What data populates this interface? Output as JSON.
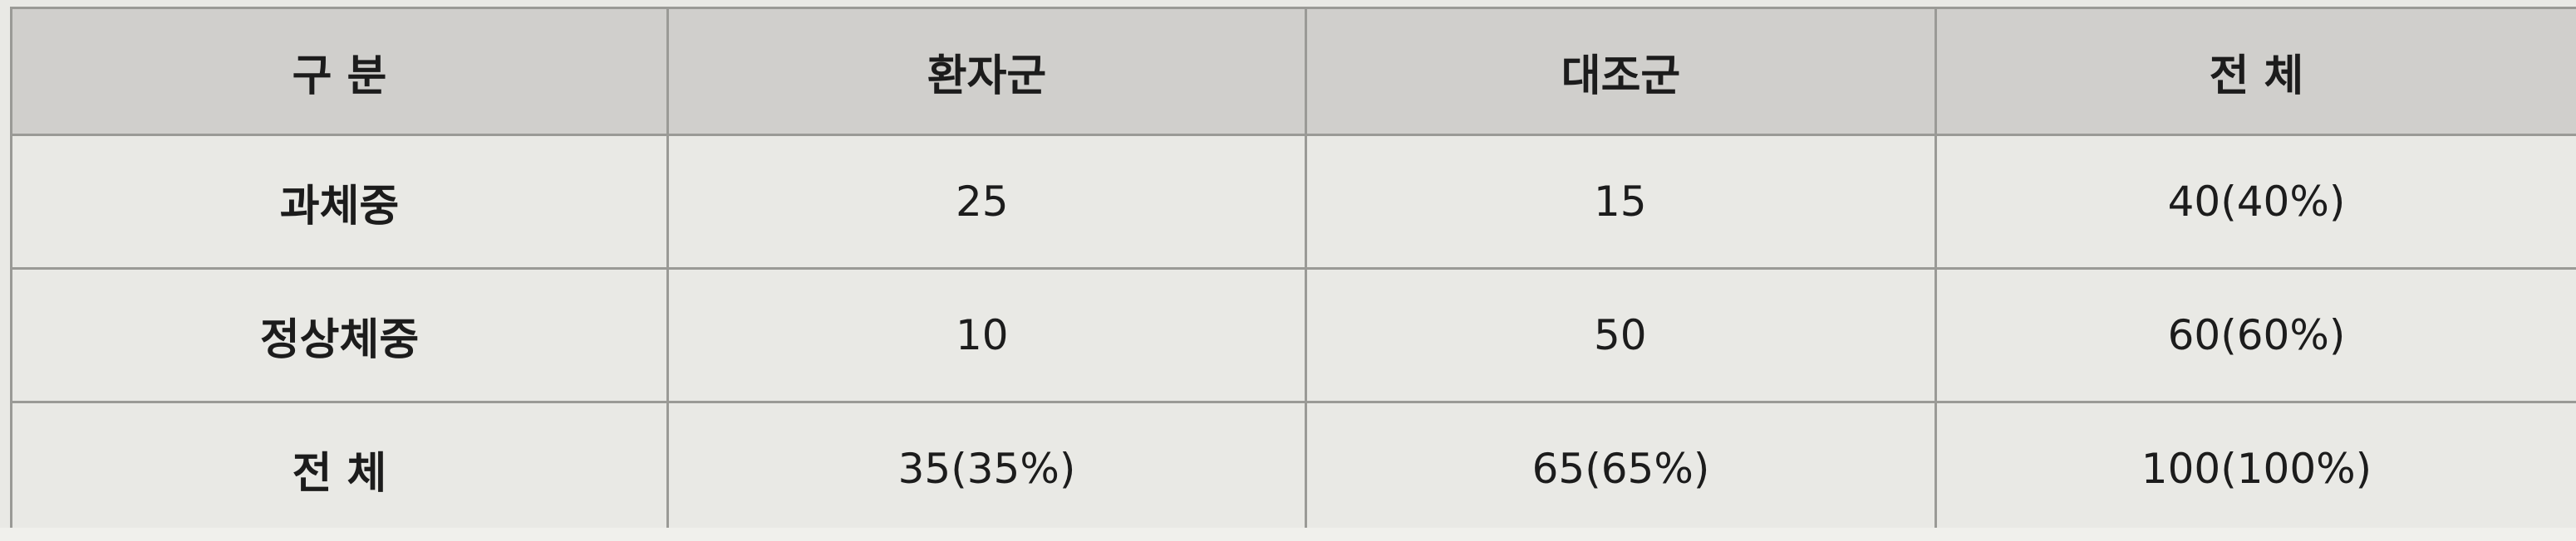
{
  "table": {
    "headers": [
      "구 분",
      "환자군",
      "대조군",
      "전 체"
    ],
    "rows": [
      {
        "label": "과체중",
        "cells": [
          "25",
          "15",
          "40(40%)"
        ]
      },
      {
        "label": "정상체중",
        "cells": [
          "10",
          "50",
          "60(60%)"
        ]
      },
      {
        "label": "전 체",
        "cells": [
          "35(35%)",
          "65(65%)",
          "100(100%)"
        ]
      }
    ]
  },
  "colors": {
    "header_bg": "#d0cfcc",
    "body_bg": "#e9e9e5",
    "border": "#9a9a96",
    "text": "#1c1c1c"
  }
}
